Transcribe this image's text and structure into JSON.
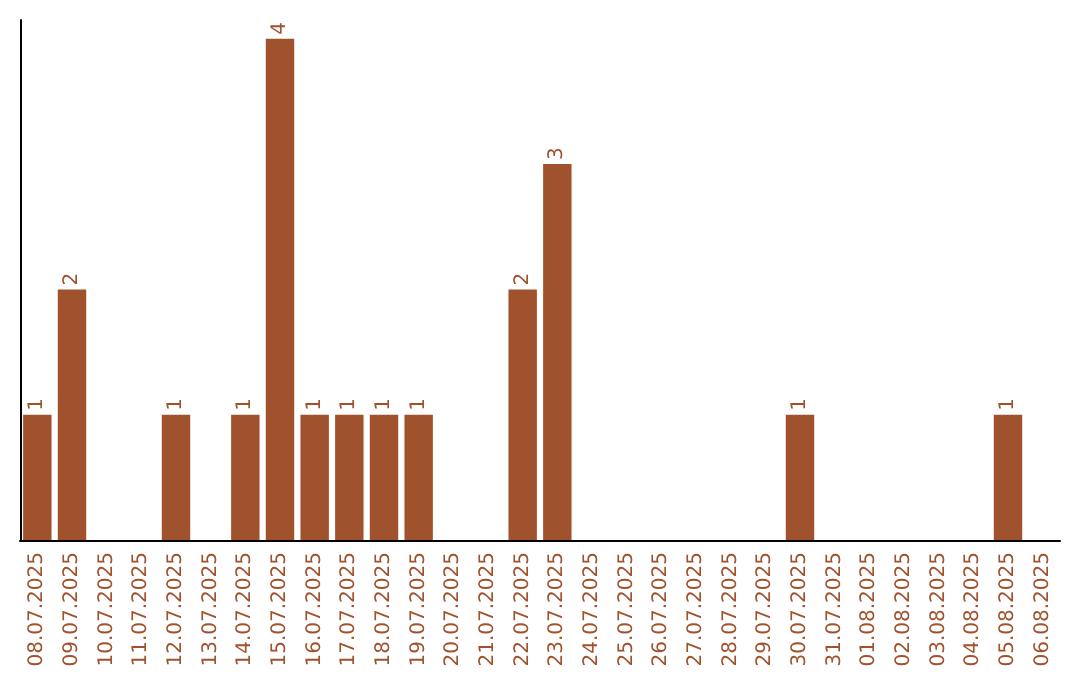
{
  "chart_data": {
    "type": "bar",
    "categories": [
      "08.07.2025",
      "09.07.2025",
      "10.07.2025",
      "11.07.2025",
      "12.07.2025",
      "13.07.2025",
      "14.07.2025",
      "15.07.2025",
      "16.07.2025",
      "17.07.2025",
      "18.07.2025",
      "19.07.2025",
      "20.07.2025",
      "21.07.2025",
      "22.07.2025",
      "23.07.2025",
      "24.07.2025",
      "25.07.2025",
      "26.07.2025",
      "27.07.2025",
      "28.07.2025",
      "29.07.2025",
      "30.07.2025",
      "31.07.2025",
      "01.08.2025",
      "02.08.2025",
      "03.08.2025",
      "04.08.2025",
      "05.08.2025",
      "06.08.2025"
    ],
    "values": [
      1,
      2,
      0,
      0,
      1,
      0,
      1,
      4,
      1,
      1,
      1,
      1,
      0,
      0,
      2,
      3,
      0,
      0,
      0,
      0,
      0,
      0,
      1,
      0,
      0,
      0,
      0,
      0,
      1,
      0
    ],
    "value_labels": [
      "1",
      "2",
      null,
      null,
      "1",
      null,
      "1",
      "4",
      "1",
      "1",
      "1",
      "1",
      null,
      null,
      "2",
      "3",
      null,
      null,
      null,
      null,
      null,
      null,
      "1",
      null,
      null,
      null,
      null,
      null,
      "1",
      null
    ],
    "color": "#a0522d",
    "ylim": [
      0,
      4.15
    ],
    "tick_labels": "x",
    "grid": false
  }
}
